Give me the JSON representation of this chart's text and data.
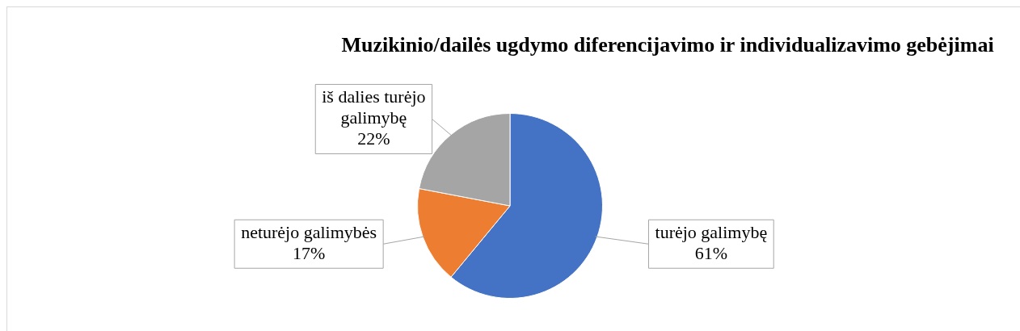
{
  "chart_data": {
    "type": "pie",
    "title": "Muzikinio/dailės ugdymo  diferencijavimo ir individualizavimo gebėjimai",
    "categories": [
      "turėjo galimybę",
      "neturėjo galimybės",
      "iš dalies turėjo galimybę"
    ],
    "values": [
      61,
      17,
      22
    ],
    "colors": [
      "#4472c4",
      "#ed7d31",
      "#a5a5a5"
    ],
    "value_labels": [
      "61%",
      "17%",
      "22%"
    ],
    "legend": false
  }
}
